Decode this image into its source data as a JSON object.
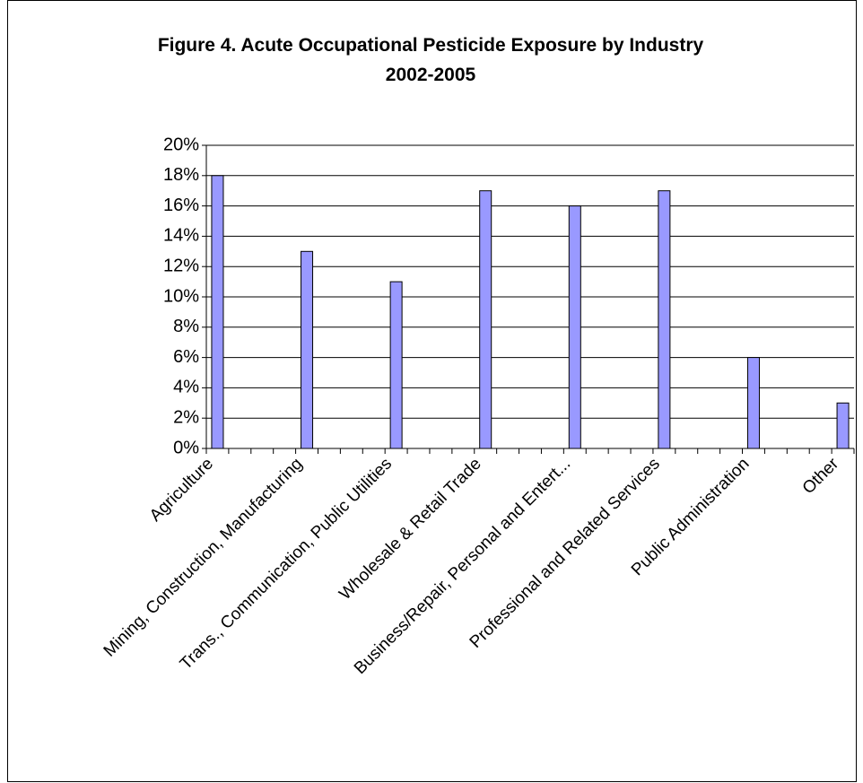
{
  "chart_data": {
    "type": "bar",
    "title": [
      "Figure 4. Acute Occupational Pesticide Exposure by Industry",
      "2002-2005"
    ],
    "categories": [
      "Agriculture",
      "Mining, Construction, Manufacturing",
      "Trans., Communication, Public Utilities",
      "Wholesale & Retail Trade",
      "Business/Repair, Personal and Entert...",
      "Professional and Related Services",
      "Public Administration",
      "Other"
    ],
    "values": [
      18,
      13,
      11,
      17,
      16,
      17,
      6,
      3
    ],
    "color": "#9999ff",
    "ylim": [
      0,
      20
    ],
    "yticks": [
      {
        "value": 0,
        "label": "0%"
      },
      {
        "value": 2,
        "label": "2%"
      },
      {
        "value": 4,
        "label": "4%"
      },
      {
        "value": 6,
        "label": "6%"
      },
      {
        "value": 8,
        "label": "8%"
      },
      {
        "value": 10,
        "label": "10%"
      },
      {
        "value": 12,
        "label": "12%"
      },
      {
        "value": 14,
        "label": "14%"
      },
      {
        "value": 16,
        "label": "16%"
      },
      {
        "value": 18,
        "label": "18%"
      },
      {
        "value": 20,
        "label": "20%"
      }
    ],
    "grid": true
  }
}
